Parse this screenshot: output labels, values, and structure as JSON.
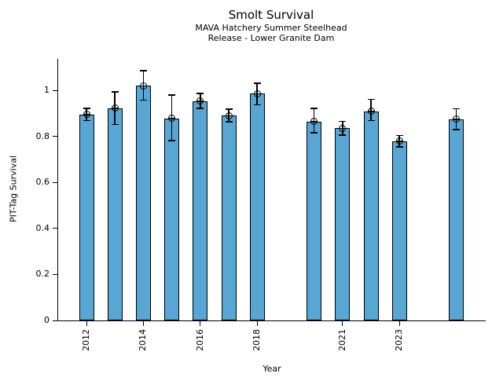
{
  "chart_data": {
    "type": "bar",
    "title": "Smolt Survival",
    "subtitle": [
      "MAVA Hatchery Summer Steelhead",
      "Release - Lower Granite Dam"
    ],
    "xlabel": "Year",
    "ylabel": "PIT-Tag Survival",
    "xlim": [
      2011,
      2026
    ],
    "ylim": [
      0,
      1.14
    ],
    "grid": false,
    "legend": null,
    "x_ticks": [
      2012,
      2014,
      2016,
      2018,
      2021,
      2023
    ],
    "y_ticks": [
      0,
      0.2,
      0.4,
      0.6,
      0.8,
      1
    ],
    "y_tick_labels": [
      "0",
      "0.2",
      "0.4",
      "0.6",
      "0.8",
      "1"
    ],
    "missing_years": [
      2019,
      2024
    ],
    "series": [
      {
        "name": "PIT-Tag Survival",
        "points": [
          {
            "year": 2012,
            "value": 0.895,
            "err_lo": 0.868,
            "err_hi": 0.921
          },
          {
            "year": 2013,
            "value": 0.923,
            "err_lo": 0.852,
            "err_hi": 0.994
          },
          {
            "year": 2014,
            "value": 1.02,
            "err_lo": 0.958,
            "err_hi": 1.085
          },
          {
            "year": 2015,
            "value": 0.878,
            "err_lo": 0.781,
            "err_hi": 0.979
          },
          {
            "year": 2016,
            "value": 0.953,
            "err_lo": 0.921,
            "err_hi": 0.986
          },
          {
            "year": 2017,
            "value": 0.89,
            "err_lo": 0.864,
            "err_hi": 0.918
          },
          {
            "year": 2018,
            "value": 0.985,
            "err_lo": 0.937,
            "err_hi": 1.031
          },
          {
            "year": 2020,
            "value": 0.864,
            "err_lo": 0.816,
            "err_hi": 0.921
          },
          {
            "year": 2021,
            "value": 0.835,
            "err_lo": 0.805,
            "err_hi": 0.866
          },
          {
            "year": 2022,
            "value": 0.908,
            "err_lo": 0.868,
            "err_hi": 0.961
          },
          {
            "year": 2023,
            "value": 0.779,
            "err_lo": 0.755,
            "err_hi": 0.804
          },
          {
            "year": 2025,
            "value": 0.874,
            "err_lo": 0.83,
            "err_hi": 0.919
          }
        ]
      }
    ],
    "colors": {
      "bar_fill": "#58a6d3",
      "bar_edge": "#000000",
      "error": "#000000",
      "background": "#ffffff"
    }
  }
}
